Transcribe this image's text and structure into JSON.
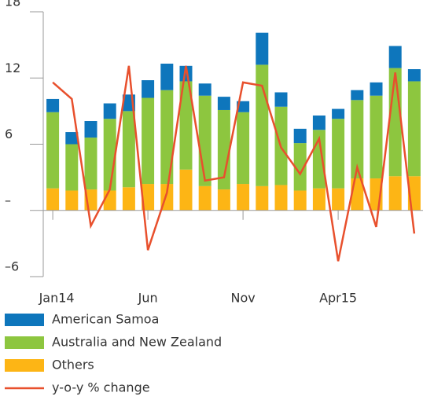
{
  "chart_data": {
    "type": "bar",
    "categories": [
      "Jan14",
      null,
      null,
      null,
      null,
      "Jun",
      null,
      null,
      null,
      null,
      "Nov",
      null,
      null,
      null,
      null,
      "Apr15",
      null,
      null,
      null,
      null
    ],
    "series": [
      {
        "name": "Others",
        "color": "#fdb515",
        "values": [
          2.0,
          1.8,
          1.9,
          1.8,
          2.1,
          2.4,
          2.4,
          3.7,
          2.2,
          1.9,
          2.4,
          2.2,
          2.3,
          1.8,
          2.0,
          2.0,
          2.9,
          2.9,
          3.1,
          3.1
        ]
      },
      {
        "name": "Australia and New Zealand",
        "color": "#8dc63f",
        "values": [
          6.9,
          4.2,
          4.7,
          6.5,
          6.9,
          7.8,
          8.5,
          8.0,
          8.2,
          7.2,
          6.5,
          11.0,
          7.1,
          4.3,
          5.3,
          6.3,
          7.1,
          7.5,
          9.8,
          8.6
        ]
      },
      {
        "name": "American Samoa",
        "color": "#0e76bc",
        "values": [
          1.2,
          1.1,
          1.5,
          1.4,
          1.5,
          1.6,
          2.4,
          1.4,
          1.1,
          1.2,
          1.0,
          2.9,
          1.3,
          1.3,
          1.3,
          0.9,
          0.9,
          1.2,
          2.0,
          1.1
        ]
      },
      {
        "name": "y-o-y % change",
        "type": "line",
        "color": "#e8502d",
        "values": [
          11.6,
          10.1,
          -1.4,
          1.9,
          13.1,
          -3.6,
          1.6,
          13.1,
          2.7,
          3.0,
          11.6,
          11.3,
          5.7,
          3.3,
          6.5,
          -4.6,
          3.9,
          -1.5,
          12.5,
          -2.1
        ]
      }
    ],
    "legend_order": [
      2,
      1,
      0,
      3
    ],
    "ylim": [
      -6,
      18
    ],
    "yticks": [
      {
        "value": -6,
        "label": "–6"
      },
      {
        "value": 0,
        "label": "–"
      },
      6,
      12,
      18
    ]
  }
}
